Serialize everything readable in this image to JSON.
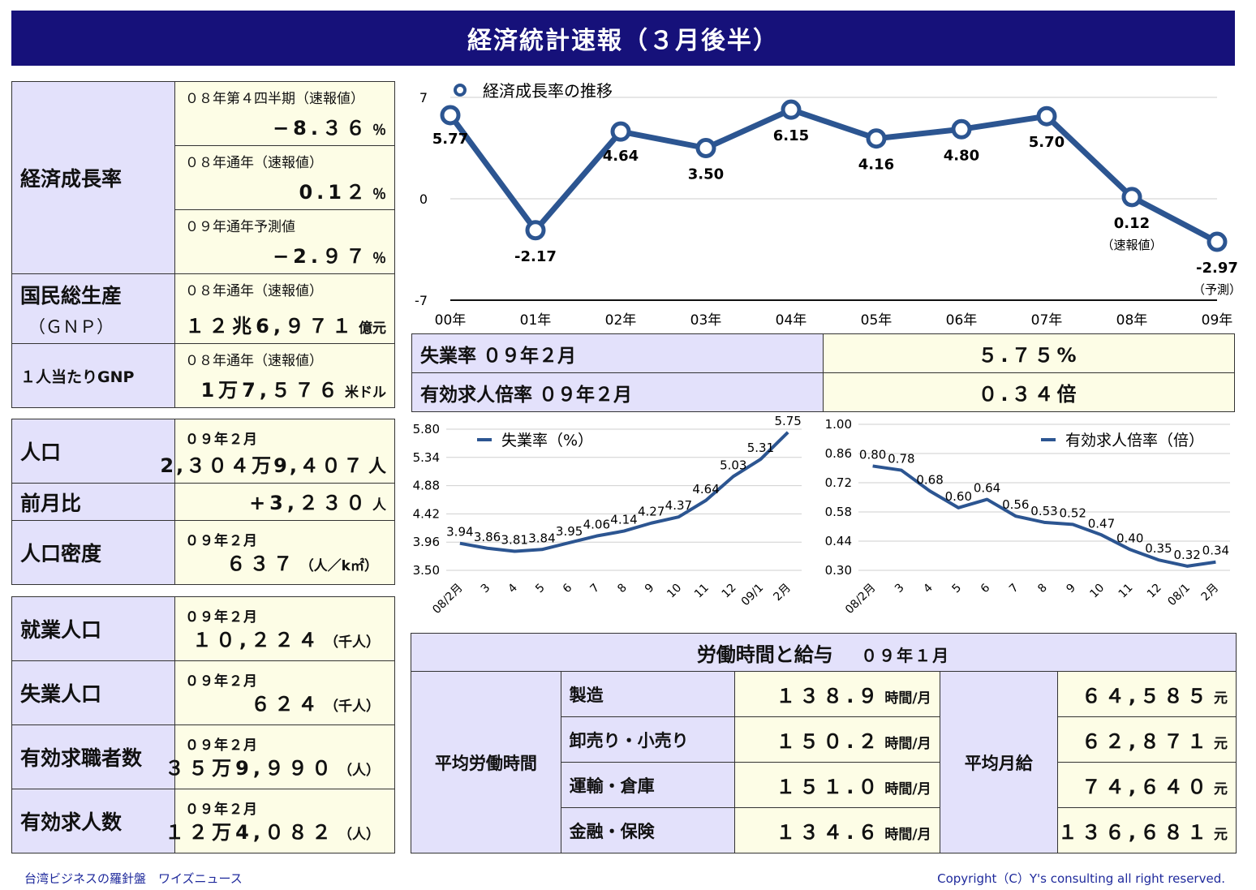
{
  "title": "経済統計速報（３月後半）",
  "growth_box": {
    "label": "経済成長率",
    "rows": [
      {
        "sub": "０８年第４四半期（速報値）",
        "value": "−8.３６",
        "unit": "％"
      },
      {
        "sub": "０８年通年（速報値）",
        "value": "0.1２",
        "unit": "％"
      },
      {
        "sub": "０９年通年予測値",
        "value": "−2.９７",
        "unit": "％"
      }
    ],
    "gnp_label_1": "国民総生産",
    "gnp_label_2": "（ＧＮＰ）",
    "gnp_sub": "０８年通年（速報値）",
    "gnp_value": "１２兆6,９７１",
    "gnp_unit": "億元",
    "gnp_pc_label": "１人当たりGNP",
    "gnp_pc_sub": "０８年通年（速報値）",
    "gnp_pc_value": "1万7,５７６",
    "gnp_pc_unit": "米ドル"
  },
  "population_box": {
    "pop_label": "人口",
    "pop_sub": "０９年２月",
    "pop_value": "2,３０４万9,４０７",
    "pop_unit": "人",
    "mom_label": "前月比",
    "mom_value": "+3,２３０",
    "mom_unit": "人",
    "density_label": "人口密度",
    "density_sub": "０９年２月",
    "density_value": "６３７",
    "density_unit": "（人／k㎡）"
  },
  "employment_box": {
    "rows": [
      {
        "label": "就業人口",
        "sub": "０９年２月",
        "value": "１０,２２４",
        "unit": "（千人）"
      },
      {
        "label": "失業人口",
        "sub": "０９年２月",
        "value": "６２４",
        "unit": "（千人）"
      },
      {
        "label": "有効求職者数",
        "sub": "０９年２月",
        "value": "３５万9,９９０",
        "unit": "（人）"
      },
      {
        "label": "有効求人数",
        "sub": "０９年２月",
        "value": "１２万4,０８２",
        "unit": "（人）"
      }
    ]
  },
  "unemp_table": {
    "rows": [
      {
        "label": "失業率 ０９年２月",
        "value": "５.７５%"
      },
      {
        "label": "有効求人倍率 ０９年２月",
        "value": "０.３４倍"
      }
    ]
  },
  "labor": {
    "header": "労働時間と給与",
    "header_date": "０９年１月",
    "hours_label": "平均労働時間",
    "wage_label": "平均月給",
    "hours_unit": "時間/月",
    "wage_unit": "元",
    "rows": [
      {
        "industry": "製造",
        "hours": "１３８.９",
        "wage": "６４,５８５"
      },
      {
        "industry": "卸売り・小売り",
        "hours": "１５０.２",
        "wage": "６２,８７１"
      },
      {
        "industry": "運輸・倉庫",
        "hours": "１５１.０",
        "wage": "７４,６４０"
      },
      {
        "industry": "金融・保険",
        "hours": "１３４.６",
        "wage": "１３６,６８１"
      }
    ]
  },
  "footer_left": "台湾ビジネスの羅針盤　ワイズニュース",
  "footer_right": "Copyright（C）Y's consulting all right reserved.",
  "chart_data": [
    {
      "type": "line",
      "title": "",
      "legend": "経済成長率の推移",
      "legend_position": "top-left",
      "color": "#2c5591",
      "categories": [
        "00年",
        "01年",
        "02年",
        "03年",
        "04年",
        "05年",
        "06年",
        "07年",
        "08年",
        "09年"
      ],
      "values": [
        5.77,
        -2.17,
        4.64,
        3.5,
        6.15,
        4.16,
        4.8,
        5.7,
        0.12,
        -2.97
      ],
      "labels": [
        "5.77",
        "-2.17",
        "4.64",
        "3.50",
        "6.15",
        "4.16",
        "4.80",
        "5.70",
        "0.12",
        "-2.97"
      ],
      "notes": {
        "8": "（速報値）",
        "9": "（予測）"
      },
      "yticks": [
        "7",
        "0",
        "-7"
      ],
      "ylim": [
        -7,
        7
      ],
      "grid": true
    },
    {
      "type": "line",
      "legend": "失業率（%）",
      "legend_position": "top-left",
      "color": "#2c5591",
      "categories": [
        "08/2月",
        "3",
        "4",
        "5",
        "6",
        "7",
        "8",
        "9",
        "10",
        "11",
        "12",
        "09/1",
        "2月"
      ],
      "values": [
        3.94,
        3.86,
        3.81,
        3.84,
        3.95,
        4.06,
        4.14,
        4.27,
        4.37,
        4.64,
        5.03,
        5.31,
        5.75
      ],
      "labels": [
        "3.94",
        "3.86",
        "3.81",
        "3.84",
        "3.95",
        "4.06",
        "4.14",
        "4.27",
        "4.37",
        "4.64",
        "5.03",
        "5.31",
        "5.75"
      ],
      "yticks": [
        "5.80",
        "5.34",
        "4.88",
        "4.42",
        "3.96",
        "3.50"
      ],
      "ylim": [
        3.5,
        5.8
      ],
      "grid": true
    },
    {
      "type": "line",
      "legend": "有効求人倍率（倍）",
      "legend_position": "top-right",
      "color": "#2c5591",
      "categories": [
        "08/2月",
        "3",
        "4",
        "5",
        "6",
        "7",
        "8",
        "9",
        "10",
        "11",
        "12",
        "08/1",
        "2月"
      ],
      "values": [
        0.8,
        0.78,
        0.68,
        0.6,
        0.64,
        0.56,
        0.53,
        0.52,
        0.47,
        0.4,
        0.35,
        0.32,
        0.34
      ],
      "labels": [
        "0.80",
        "0.78",
        "0.68",
        "0.60",
        "0.64",
        "0.56",
        "0.53",
        "0.52",
        "0.47",
        "0.40",
        "0.35",
        "0.32",
        "0.34"
      ],
      "yticks": [
        "1.00",
        "0.86",
        "0.72",
        "0.58",
        "0.44",
        "0.30"
      ],
      "ylim": [
        0.3,
        1.0
      ],
      "grid": true
    }
  ]
}
